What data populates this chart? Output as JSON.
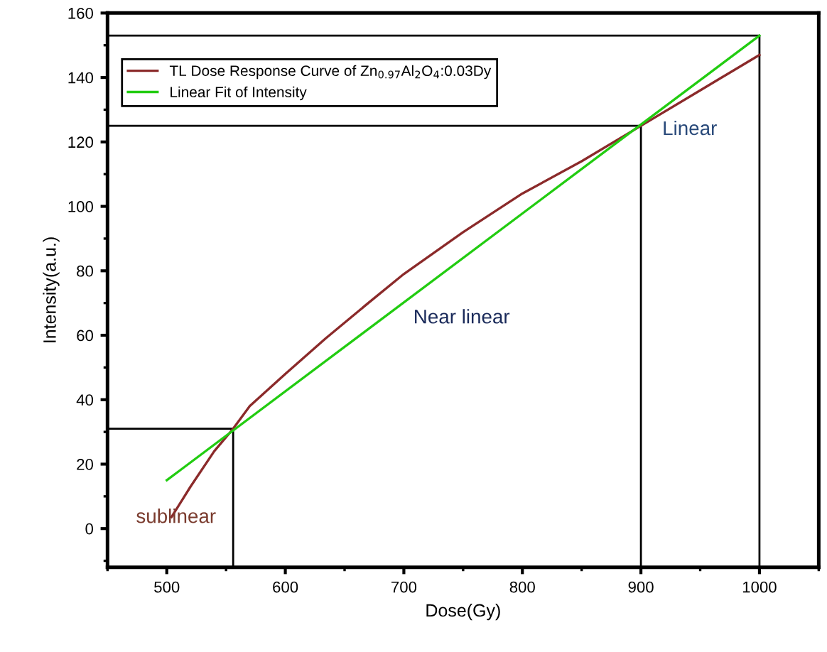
{
  "chart_data": {
    "type": "line",
    "xlabel": "Dose(Gy)",
    "ylabel": "Intensity(a.u.)",
    "xlim": [
      450,
      1050
    ],
    "ylim": [
      -12,
      160
    ],
    "xticks": [
      500,
      600,
      700,
      800,
      900,
      1000
    ],
    "yticks": [
      0,
      20,
      40,
      60,
      80,
      100,
      120,
      140,
      160
    ],
    "grid": false,
    "legend": "top left",
    "line_style": "solid",
    "marker": "none",
    "series": [
      {
        "name": "TL Dose Response Curve of Zn$_{0.97}$Al$_{2}$O$_{4}$:0.03Dy",
        "color": "#8b2a2a",
        "x": [
          504,
          520,
          540,
          556,
          570,
          600,
          634,
          670,
          700,
          750,
          800,
          850,
          900,
          950,
          1000
        ],
        "values": [
          3.6,
          13,
          24,
          31,
          38,
          48,
          59,
          70,
          79,
          92,
          104,
          114,
          125,
          136,
          147
        ]
      },
      {
        "name": "Linear Fit of Intensity",
        "color": "#22cc11",
        "x": [
          500,
          1000
        ],
        "values": [
          15,
          153
        ]
      },
      {
        "color": "#000000",
        "x": [
          450,
          556,
          556
        ],
        "values": [
          31,
          31,
          -12
        ]
      },
      {
        "color": "#000000",
        "x": [
          450,
          900,
          900
        ],
        "values": [
          125,
          125,
          -12
        ]
      },
      {
        "color": "#000000",
        "x": [
          450,
          1000,
          1000
        ],
        "values": [
          153,
          153,
          -12
        ]
      }
    ],
    "annotations": [
      "sublinear",
      "Near linear",
      "Linear"
    ]
  }
}
